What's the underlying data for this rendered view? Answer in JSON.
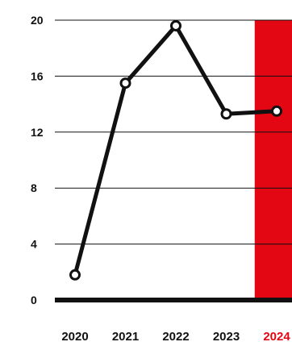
{
  "chart_data": {
    "type": "line",
    "categories": [
      "2020",
      "2021",
      "2022",
      "2023",
      "2024"
    ],
    "highlight_category": "2024",
    "series": [
      {
        "values": [
          1.8,
          15.5,
          19.6,
          13.3,
          13.5
        ]
      }
    ],
    "ylim": [
      0,
      20
    ],
    "yticks": [
      0,
      4,
      8,
      12,
      16,
      20
    ],
    "grid": true,
    "title": "",
    "xlabel": "",
    "ylabel": ""
  },
  "colors": {
    "line": "#111111",
    "highlight": "#e30613",
    "grid": "#111111",
    "baseline": "#111111"
  }
}
